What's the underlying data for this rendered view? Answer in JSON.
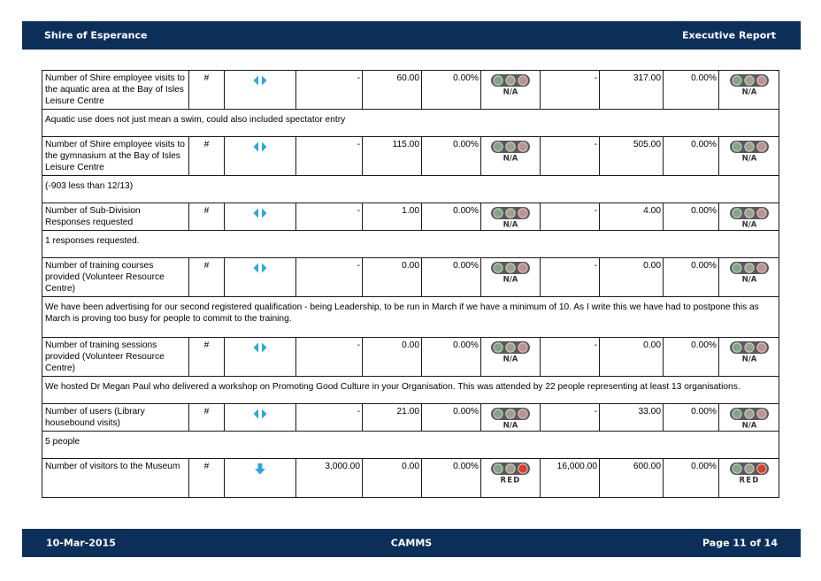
{
  "header": {
    "org": "Shire of Esperance",
    "report": "Executive Report"
  },
  "footer": {
    "date": "10-Mar-2015",
    "brand": "CAMMS",
    "page": "Page 11 of 14"
  },
  "colors": {
    "bar": "#0c2f5a",
    "trend_arrow": "#29a8e0",
    "light_off": "#8aa08a",
    "light_red": "#e03a2a"
  },
  "rows": [
    {
      "name": "Number of Shire employee visits to the aquatic area at the Bay of Isles Leisure Centre",
      "unit": "#",
      "trend": "both-arrows-icon",
      "target_a": "-",
      "actual_a": "60.00",
      "pct_a": "0.00%",
      "status_a": "N/A",
      "target_b": "-",
      "actual_b": "317.00",
      "pct_b": "0.00%",
      "status_b": "N/A",
      "comment": "Aquatic use does not just mean a swim, could also included spectator entry"
    },
    {
      "name": "Number of Shire employee visits to the gymnasium at the Bay of Isles Leisure Centre",
      "unit": "#",
      "trend": "both-arrows-icon",
      "target_a": "-",
      "actual_a": "115.00",
      "pct_a": "0.00%",
      "status_a": "N/A",
      "target_b": "-",
      "actual_b": "505.00",
      "pct_b": "0.00%",
      "status_b": "N/A",
      "comment": "(-903 less than 12/13)"
    },
    {
      "name": "Number of Sub-Division Responses requested",
      "unit": "#",
      "trend": "both-arrows-icon",
      "target_a": "-",
      "actual_a": "1.00",
      "pct_a": "0.00%",
      "status_a": "N/A",
      "target_b": "-",
      "actual_b": "4.00",
      "pct_b": "0.00%",
      "status_b": "N/A",
      "comment": "1 responses requested."
    },
    {
      "name": "Number of training courses provided (Volunteer Resource Centre)",
      "unit": "#",
      "trend": "both-arrows-icon",
      "target_a": "-",
      "actual_a": "0.00",
      "pct_a": "0.00%",
      "status_a": "N/A",
      "target_b": "-",
      "actual_b": "0.00",
      "pct_b": "0.00%",
      "status_b": "N/A",
      "comment": "We have been advertising for our second registered qualification - being Leadership, to be run in March if we have a minimum of 10.  As I write this we have had to postpone this as March is proving too busy for people to commit to the training."
    },
    {
      "name": "Number of training sessions provided (Volunteer Resource Centre)",
      "unit": "#",
      "trend": "both-arrows-icon",
      "target_a": "-",
      "actual_a": "0.00",
      "pct_a": "0.00%",
      "status_a": "N/A",
      "target_b": "-",
      "actual_b": "0.00",
      "pct_b": "0.00%",
      "status_b": "N/A",
      "comment": "We hosted Dr Megan Paul who delivered a workshop on Promoting Good Culture in your Organisation.  This was attended by 22 people representing at least 13 organisations."
    },
    {
      "name": "Number of users (Library housebound visits)",
      "unit": "#",
      "trend": "both-arrows-icon",
      "target_a": "-",
      "actual_a": "21.00",
      "pct_a": "0.00%",
      "status_a": "N/A",
      "target_b": "-",
      "actual_b": "33.00",
      "pct_b": "0.00%",
      "status_b": "N/A",
      "comment": "5 people"
    },
    {
      "name": "Number of visitors to the Museum",
      "unit": "#",
      "trend": "down-arrow-icon",
      "target_a": "3,000.00",
      "actual_a": "0.00",
      "pct_a": "0.00%",
      "status_a": "RED",
      "target_b": "16,000.00",
      "actual_b": "600.00",
      "pct_b": "0.00%",
      "status_b": "RED",
      "comment": null
    }
  ]
}
